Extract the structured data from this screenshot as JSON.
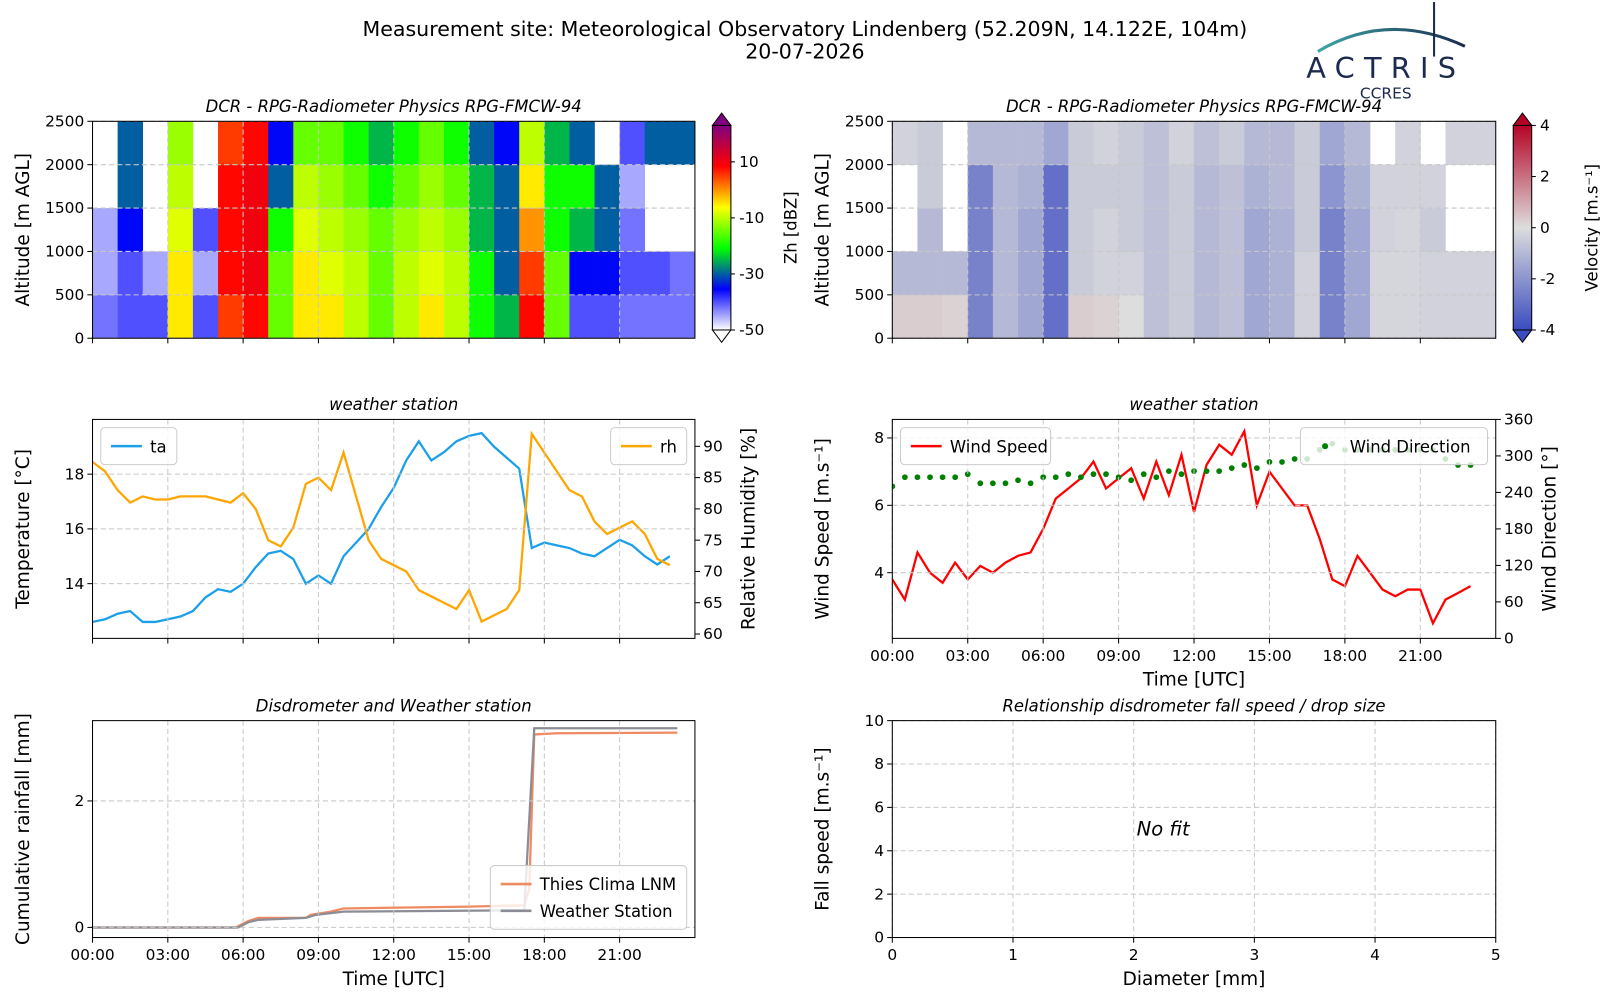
{
  "header": {
    "title": "Measurement site: Meteorological Observatory Lindenberg (52.209N, 14.122E, 104m)",
    "date": "20-07-2026"
  },
  "logo": {
    "name": "ACTRIS",
    "subtitle": "CCRES"
  },
  "chart_data": [
    {
      "type": "heatmap",
      "title": "DCR - RPG-Radiometer Physics RPG-FMCW-94",
      "ylabel": "Altitude [m AGL]",
      "xbins": [
        0,
        1,
        2,
        3,
        4,
        5,
        6,
        7,
        8,
        9,
        10,
        11,
        12,
        13,
        14,
        15,
        16,
        17,
        18,
        19,
        20,
        21,
        22,
        23,
        24
      ],
      "ybins": [
        0,
        500,
        1000,
        1500,
        2000,
        2500
      ],
      "values": [
        [
          -42,
          -45,
          -45,
          null,
          null
        ],
        [
          -40,
          -40,
          -35,
          -30,
          -30
        ],
        [
          -40,
          -45,
          null,
          null,
          null
        ],
        [
          -5,
          -5,
          -8,
          -10,
          -12
        ],
        [
          -40,
          -45,
          -40,
          null,
          null
        ],
        [
          5,
          8,
          8,
          8,
          5
        ],
        [
          8,
          10,
          10,
          10,
          8
        ],
        [
          -15,
          -15,
          -20,
          -30,
          -35
        ],
        [
          -5,
          -5,
          -8,
          -10,
          -15
        ],
        [
          -5,
          -8,
          -10,
          -12,
          -15
        ],
        [
          -10,
          -10,
          -12,
          -15,
          -20
        ],
        [
          -15,
          -15,
          -15,
          -20,
          -25
        ],
        [
          -10,
          -10,
          -12,
          -15,
          -20
        ],
        [
          -5,
          -8,
          -10,
          -12,
          -15
        ],
        [
          -10,
          -10,
          -12,
          -15,
          -20
        ],
        [
          -20,
          -20,
          -25,
          -25,
          -30
        ],
        [
          -25,
          -30,
          -30,
          -30,
          -35
        ],
        [
          8,
          5,
          0,
          -5,
          -10
        ],
        [
          -15,
          -15,
          -20,
          -20,
          -25
        ],
        [
          -40,
          -35,
          -25,
          -20,
          -30
        ],
        [
          -40,
          -35,
          -30,
          -30,
          null
        ],
        [
          -42,
          -40,
          -42,
          -45,
          -40
        ],
        [
          -42,
          -40,
          null,
          null,
          -30
        ],
        [
          -42,
          -42,
          null,
          null,
          -30
        ]
      ],
      "xlim": [
        0,
        24
      ],
      "xticks": [
        0,
        3,
        6,
        9,
        12,
        15,
        18,
        21
      ],
      "show_xtick_labels": false,
      "ylim": [
        0,
        2500
      ],
      "yticks": [
        0,
        500,
        1000,
        1500,
        2000,
        2500
      ],
      "grid": true,
      "zlabel": "Zh [dBZ]",
      "zlim": [
        -50,
        23
      ],
      "zticks": [
        -50,
        -30,
        -10,
        10
      ],
      "colormap": [
        "#ffffff",
        "#0000ff",
        "#00ff00",
        "#ffff00",
        "#ff0000",
        "#800080"
      ]
    },
    {
      "type": "heatmap",
      "title": "DCR - RPG-Radiometer Physics RPG-FMCW-94",
      "ylabel": "Altitude [m AGL]",
      "xbins": [
        0,
        1,
        2,
        3,
        4,
        5,
        6,
        7,
        8,
        9,
        10,
        11,
        12,
        13,
        14,
        15,
        16,
        17,
        18,
        19,
        20,
        21,
        22,
        23,
        24
      ],
      "ybins": [
        0,
        500,
        1000,
        1500,
        2000,
        2500
      ],
      "values": [
        [
          0.3,
          -1,
          null,
          null,
          -0.3
        ],
        [
          0.3,
          -1,
          -1,
          -0.5,
          -0.5
        ],
        [
          0.2,
          -1,
          null,
          null,
          null
        ],
        [
          -2.5,
          -2.5,
          -2.5,
          -2.5,
          -1
        ],
        [
          -1,
          -1,
          -1,
          -1,
          -1
        ],
        [
          -1.5,
          -1.5,
          -1.5,
          -1.2,
          -1
        ],
        [
          -3,
          -3,
          -3,
          -3,
          -1.5
        ],
        [
          0.3,
          -0.5,
          -0.5,
          -0.5,
          -0.5
        ],
        [
          0.2,
          -0.3,
          -0.3,
          -0.5,
          -0.3
        ],
        [
          0,
          -0.3,
          -0.5,
          -0.5,
          -0.5
        ],
        [
          -0.8,
          -0.8,
          -0.8,
          -0.8,
          -0.8
        ],
        [
          -0.5,
          -0.5,
          -0.5,
          -0.5,
          -0.3
        ],
        [
          -1,
          -1,
          -1,
          -1,
          -0.8
        ],
        [
          -0.8,
          -0.8,
          -0.8,
          -0.8,
          -0.5
        ],
        [
          -1.5,
          -1.5,
          -1.5,
          -1.2,
          -1
        ],
        [
          -1.2,
          -1.2,
          -1.2,
          -1,
          -1
        ],
        [
          -0.3,
          -0.3,
          -0.5,
          -0.5,
          -0.5
        ],
        [
          -2.5,
          -2.5,
          -2.5,
          -2,
          -1.5
        ],
        [
          -1.5,
          -1.5,
          -1.5,
          -1.2,
          -1
        ],
        [
          -0.2,
          -0.2,
          -0.3,
          -0.3,
          null
        ],
        [
          -0.2,
          -0.2,
          -0.2,
          -0.3,
          -0.3
        ],
        [
          -0.3,
          -0.3,
          -0.5,
          -0.3,
          null
        ],
        [
          -0.3,
          -0.3,
          null,
          null,
          -0.3
        ],
        [
          -0.3,
          -0.3,
          null,
          null,
          -0.3
        ]
      ],
      "xlim": [
        0,
        24
      ],
      "xticks": [
        0,
        3,
        6,
        9,
        12,
        15,
        18,
        21
      ],
      "show_xtick_labels": false,
      "ylim": [
        0,
        2500
      ],
      "yticks": [
        0,
        500,
        1000,
        1500,
        2000,
        2500
      ],
      "grid": true,
      "zlabel": "Velocity [m.s⁻¹]",
      "zlim": [
        -4,
        4
      ],
      "zticks": [
        -4,
        -2,
        0,
        2,
        4
      ],
      "colormap": [
        "#3b4cc0",
        "#dddddd",
        "#b40426"
      ]
    },
    {
      "type": "line",
      "title": "weather station",
      "x": [
        0,
        0.5,
        1,
        1.5,
        2,
        2.5,
        3,
        3.5,
        4,
        4.5,
        5,
        5.5,
        6,
        6.5,
        7,
        7.5,
        8,
        8.5,
        9,
        9.5,
        10,
        10.5,
        11,
        11.5,
        12,
        12.5,
        13,
        13.5,
        14,
        14.5,
        15,
        15.5,
        16,
        16.5,
        17,
        17.5,
        18,
        18.5,
        19,
        19.5,
        20,
        20.5,
        21,
        21.5,
        22,
        22.5,
        23
      ],
      "xlim": [
        0,
        24
      ],
      "xticks": [
        0,
        3,
        6,
        9,
        12,
        15,
        18,
        21
      ],
      "show_xtick_labels": false,
      "ylabel": "Temperature [°C]",
      "ylim": [
        12,
        20
      ],
      "yticks": [
        14,
        16,
        18
      ],
      "y2label": "Relative Humidity [%]",
      "y2lim": [
        59.3,
        94.3
      ],
      "y2ticks": [
        60,
        65,
        70,
        75,
        80,
        85,
        90
      ],
      "grid": true,
      "series": [
        {
          "name": "ta",
          "color": "#1a9fe8",
          "legend": "upper left",
          "values": [
            12.6,
            12.7,
            12.9,
            13.0,
            12.6,
            12.6,
            12.7,
            12.8,
            13.0,
            13.5,
            13.8,
            13.7,
            14.0,
            14.6,
            15.1,
            15.2,
            14.9,
            14.0,
            14.3,
            14.0,
            15.0,
            15.5,
            16.0,
            16.8,
            17.5,
            18.5,
            19.2,
            18.5,
            18.8,
            19.2,
            19.4,
            19.5,
            19.0,
            18.6,
            18.2,
            15.3,
            15.5,
            15.4,
            15.3,
            15.1,
            15.0,
            15.3,
            15.6,
            15.4,
            15.0,
            14.7,
            15.0
          ]
        },
        {
          "name": "rh",
          "color": "#ffa500",
          "axis": "y2",
          "legend": "upper right",
          "values": [
            87.5,
            86,
            83,
            81,
            82,
            81.5,
            81.5,
            82,
            82,
            82,
            81.5,
            81,
            82.5,
            80,
            75,
            74,
            77,
            84,
            85,
            83,
            89,
            82,
            75,
            72,
            71,
            70,
            67,
            66,
            65,
            64,
            67,
            62,
            63,
            64,
            67,
            92,
            89,
            86,
            83,
            82,
            78,
            76,
            77,
            78,
            76,
            72,
            71
          ]
        }
      ]
    },
    {
      "type": "line",
      "title": "weather station",
      "x": [
        0,
        0.5,
        1,
        1.5,
        2,
        2.5,
        3,
        3.5,
        4,
        4.5,
        5,
        5.5,
        6,
        6.5,
        7,
        7.5,
        8,
        8.5,
        9,
        9.5,
        10,
        10.5,
        11,
        11.5,
        12,
        12.5,
        13,
        13.5,
        14,
        14.5,
        15,
        15.5,
        16,
        16.5,
        17,
        17.5,
        18,
        18.5,
        19,
        19.5,
        20,
        20.5,
        21,
        21.5,
        22,
        22.5,
        23
      ],
      "xlim": [
        0,
        24
      ],
      "xticks": [
        {
          "value": 0,
          "label": "00:00"
        },
        {
          "value": 3,
          "label": "03:00"
        },
        {
          "value": 6,
          "label": "06:00"
        },
        {
          "value": 9,
          "label": "09:00"
        },
        {
          "value": 12,
          "label": "12:00"
        },
        {
          "value": 15,
          "label": "15:00"
        },
        {
          "value": 18,
          "label": "18:00"
        },
        {
          "value": 21,
          "label": "21:00"
        }
      ],
      "xlabel": "Time [UTC]",
      "ylabel": "Wind Speed [m.s⁻¹]",
      "ylim": [
        2.05,
        8.55
      ],
      "yticks": [
        4,
        6,
        8
      ],
      "y2label": "Wind Direction [°]",
      "y2lim": [
        0,
        360
      ],
      "y2ticks": [
        0,
        60,
        120,
        180,
        240,
        300,
        360
      ],
      "grid": true,
      "series": [
        {
          "name": "Wind Speed",
          "color": "#ff0000",
          "legend": "upper left",
          "values": [
            3.8,
            3.2,
            4.6,
            4.0,
            3.7,
            4.3,
            3.8,
            4.2,
            4.0,
            4.3,
            4.5,
            4.6,
            5.3,
            6.2,
            6.5,
            6.8,
            7.3,
            6.5,
            6.8,
            7.1,
            6.2,
            7.3,
            6.3,
            7.5,
            5.8,
            7.2,
            7.8,
            7.5,
            8.2,
            6.0,
            7.0,
            6.5,
            6.0,
            6.0,
            5.0,
            3.8,
            3.6,
            4.5,
            4.0,
            3.5,
            3.3,
            3.5,
            3.5,
            2.5,
            3.2,
            3.4,
            3.6
          ]
        },
        {
          "name": "Wind Direction",
          "color": "#008000",
          "axis": "y2",
          "style": "markers",
          "legend": "upper right",
          "values": [
            250,
            265,
            265,
            265,
            265,
            265,
            270,
            255,
            255,
            255,
            260,
            255,
            265,
            265,
            270,
            265,
            270,
            270,
            265,
            260,
            270,
            265,
            275,
            270,
            275,
            275,
            275,
            280,
            285,
            280,
            290,
            290,
            295,
            295,
            310,
            320,
            310,
            310,
            310,
            310,
            310,
            310,
            310,
            310,
            295,
            285,
            285
          ]
        }
      ]
    },
    {
      "type": "line",
      "title": "Disdrometer and Weather station",
      "xlim": [
        0,
        24
      ],
      "xticks": [
        {
          "value": 0,
          "label": "00:00"
        },
        {
          "value": 3,
          "label": "03:00"
        },
        {
          "value": 6,
          "label": "06:00"
        },
        {
          "value": 9,
          "label": "09:00"
        },
        {
          "value": 12,
          "label": "12:00"
        },
        {
          "value": 15,
          "label": "15:00"
        },
        {
          "value": 18,
          "label": "18:00"
        },
        {
          "value": 21,
          "label": "21:00"
        }
      ],
      "xlabel": "Time [UTC]",
      "ylabel": "Cumulative rainfall [mm]",
      "ylim": [
        -0.16,
        3.27
      ],
      "yticks": [
        0,
        2
      ],
      "grid": true,
      "legend": "lower right",
      "series": [
        {
          "name": "Thies Clima LNM",
          "color": "#ef8a62",
          "x": [
            0,
            5.7,
            6.2,
            6.6,
            8.5,
            8.7,
            9.5,
            10,
            15,
            17.2,
            17.4,
            17.6,
            18.5,
            23.3
          ],
          "values": [
            0,
            0,
            0.1,
            0.15,
            0.15,
            0.2,
            0.25,
            0.3,
            0.33,
            0.35,
            0.6,
            3.05,
            3.07,
            3.08
          ]
        },
        {
          "name": "Weather Station",
          "color": "#8c8c96",
          "x": [
            0,
            5.8,
            6.2,
            6.6,
            8.5,
            8.9,
            10,
            17.2,
            17.6,
            23.3
          ],
          "values": [
            0,
            0,
            0.08,
            0.12,
            0.15,
            0.2,
            0.25,
            0.27,
            3.15,
            3.15
          ]
        }
      ]
    },
    {
      "type": "scatter",
      "title": "Relationship disdrometer fall speed / drop size",
      "xlabel": "Diameter [mm]",
      "ylabel": "Fall speed [m.s⁻¹]",
      "xlim": [
        0,
        5
      ],
      "xticks": [
        0,
        1,
        2,
        3,
        4,
        5
      ],
      "ylim": [
        0,
        10
      ],
      "yticks": [
        0,
        2,
        4,
        6,
        8,
        10
      ],
      "grid": true,
      "annotation": "No fit"
    }
  ]
}
